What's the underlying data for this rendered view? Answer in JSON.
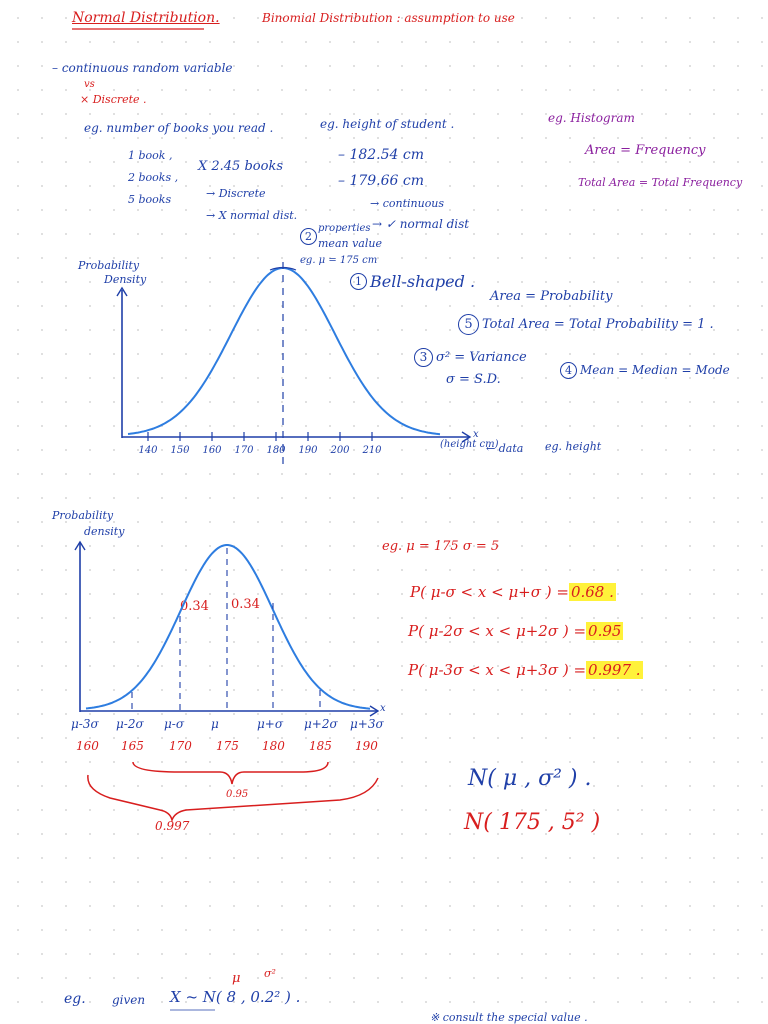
{
  "header": {
    "title": "Normal Distribution.",
    "subtitle": "Binomial Distribution : assumption to use"
  },
  "intro": {
    "line1": "– continuous random variable",
    "vs": "vs",
    "line2": "× Discrete ."
  },
  "examples": {
    "books_title": "eg. number of books you read .",
    "book_1": "1 book ,",
    "book_2": "2 books ,",
    "book_5": "5 books",
    "book_x": "X 2.45 books",
    "discrete": "→ Discrete",
    "not_normal": "→ X normal dist.",
    "height_title": "eg. height of student .",
    "h1": "– 182.54 cm",
    "h2": "– 179.66 cm",
    "continuous": "→ continuous",
    "normal": "→ ✓ normal dist",
    "hist_title": "eg. Histogram",
    "hist_area": "Area = Frequency",
    "hist_total": "Total Area = Total Frequency"
  },
  "chart1": {
    "ylabel_1": "Probability",
    "ylabel_2": "Density",
    "xaxis_extra": "x",
    "x_unit": "(height cm)",
    "data_label": "← data",
    "eg_height": "eg. height",
    "ticks": [
      "140",
      "150",
      "160",
      "170",
      "180",
      "190",
      "200",
      "210"
    ],
    "mean_num": "2",
    "mean_prop": "properties",
    "mean_text": "mean value",
    "mean_eg": "eg. μ = 175 cm",
    "bell_num": "1",
    "bell_text": "Bell-shaped ."
  },
  "properties": {
    "area": "Area = Probability",
    "p5_num": "5",
    "total": "Total Area = Total Probability = 1 .",
    "p3_num": "3",
    "var": "σ² = Variance",
    "sd": "σ = S.D.",
    "p4_num": "4",
    "mmm": "Mean = Median = Mode"
  },
  "chart2": {
    "ylabel_1": "Probability",
    "ylabel_2": "density",
    "xaxis_extra": "x",
    "band_left": "0.34",
    "band_right": "0.34",
    "tick_labels": [
      "μ-3σ",
      "μ-2σ",
      "μ-σ",
      "μ",
      "μ+σ",
      "μ+2σ",
      "μ+3σ"
    ],
    "tick_values": [
      "160",
      "165",
      "170",
      "175",
      "180",
      "185",
      "190"
    ],
    "brace_95": "0.95",
    "brace_997": "0.997"
  },
  "rule": {
    "eg": "eg. μ = 175    σ = 5",
    "p1_text": "P( μ-σ < x < μ+σ ) =",
    "p1_val": "0.68 .",
    "p2_text": "P( μ-2σ < x < μ+2σ ) =",
    "p2_val": "0.95",
    "p3_text": "P( μ-3σ < x < μ+3σ ) =",
    "p3_val": "0.997 ."
  },
  "notation": {
    "general": "N( μ , σ² ) .",
    "specific": "N( 175 , 5² )"
  },
  "bottom": {
    "eg": "eg.",
    "given": "given",
    "xn": "X ~ N( 8 , 0.2² ) .",
    "mu": "μ",
    "sigma2": "σ²",
    "footer": "※ consult the special value ."
  },
  "colors": {
    "ink_blue": "#1f3fa8",
    "ink_red": "#d81e1e",
    "ink_purple": "#8a1e9e",
    "curve_blue": "#2e7de0",
    "highlight": "#fff23a"
  }
}
